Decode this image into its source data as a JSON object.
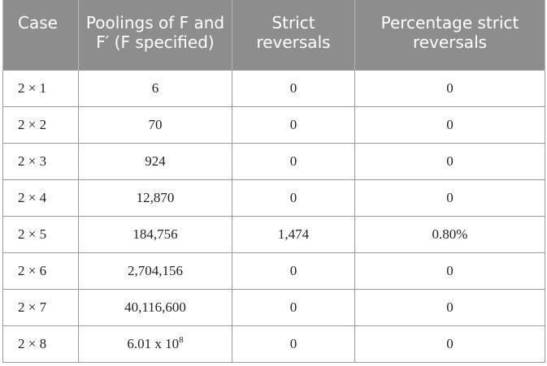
{
  "table": {
    "headers": [
      "Case",
      "Poolings of F and F′ (F specified)",
      "Strict reversals",
      "Percentage strict reversals"
    ],
    "rows": [
      {
        "case": "2 × 1",
        "poolings": "6",
        "strict": "0",
        "pct": "0"
      },
      {
        "case": "2 × 2",
        "poolings": "70",
        "strict": "0",
        "pct": "0"
      },
      {
        "case": "2 × 3",
        "poolings": "924",
        "strict": "0",
        "pct": "0"
      },
      {
        "case": "2 × 4",
        "poolings": "12,870",
        "strict": "0",
        "pct": "0"
      },
      {
        "case": "2 × 5",
        "poolings": "184,756",
        "strict": "1,474",
        "pct": "0.80%"
      },
      {
        "case": "2 × 6",
        "poolings": "2,704,156",
        "strict": "0",
        "pct": "0"
      },
      {
        "case": "2 × 7",
        "poolings": "40,116,600",
        "strict": "0",
        "pct": "0"
      },
      {
        "case": "2 × 8",
        "poolings": "6.01 x 10",
        "poolings_exp": "8",
        "strict": "0",
        "pct": "0"
      }
    ]
  }
}
